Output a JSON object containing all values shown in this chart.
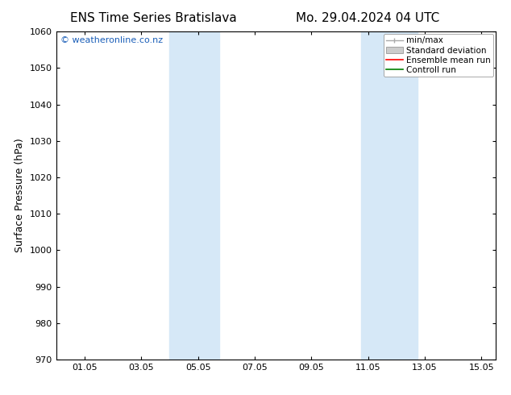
{
  "title_left": "ENS Time Series Bratislava",
  "title_right": "Mo. 29.04.2024 04 UTC",
  "ylabel": "Surface Pressure (hPa)",
  "ylim": [
    970,
    1060
  ],
  "yticks": [
    970,
    980,
    990,
    1000,
    1010,
    1020,
    1030,
    1040,
    1050,
    1060
  ],
  "xlim_start": 0,
  "xlim_end": 15.5,
  "xtick_positions": [
    1,
    3,
    5,
    7,
    9,
    11,
    13,
    15
  ],
  "xtick_labels": [
    "01.05",
    "03.05",
    "05.05",
    "07.05",
    "09.05",
    "11.05",
    "13.05",
    "15.05"
  ],
  "shaded_bands": [
    {
      "x_start": 4.0,
      "x_end": 5.75,
      "color": "#d6e8f7"
    },
    {
      "x_start": 10.75,
      "x_end": 12.75,
      "color": "#d6e8f7"
    }
  ],
  "watermark_text": "© weatheronline.co.nz",
  "watermark_color": "#1a5eb8",
  "background_color": "#ffffff",
  "plot_bg_color": "#ffffff",
  "legend_entries": [
    {
      "label": "min/max",
      "color": "#aaaaaa",
      "style": "errorbar"
    },
    {
      "label": "Standard deviation",
      "color": "#cccccc",
      "style": "band"
    },
    {
      "label": "Ensemble mean run",
      "color": "#ff0000",
      "style": "line"
    },
    {
      "label": "Controll run",
      "color": "#008000",
      "style": "line"
    }
  ],
  "title_fontsize": 11,
  "axis_label_fontsize": 9,
  "tick_fontsize": 8,
  "legend_fontsize": 7.5,
  "watermark_fontsize": 8
}
